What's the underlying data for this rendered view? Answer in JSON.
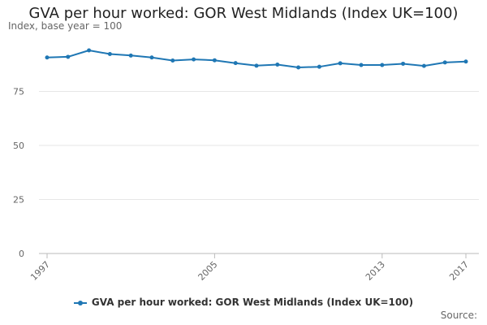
{
  "chart_data": {
    "type": "line",
    "title": "GVA per hour worked: GOR West Midlands (Index UK=100)",
    "ylabel": "Index, base year = 100",
    "xlabel": "",
    "x": [
      "1997",
      "1998",
      "1999",
      "2000",
      "2001",
      "2002",
      "2003",
      "2004",
      "2005",
      "2006",
      "2007",
      "2008",
      "2009",
      "2010",
      "2011",
      "2012",
      "2013",
      "2014",
      "2015",
      "2016",
      "2017"
    ],
    "x_tick_labels": [
      "1997",
      "2005",
      "2013",
      "2017"
    ],
    "y_ticks": [
      0,
      25,
      50,
      75
    ],
    "ylim": [
      0,
      100
    ],
    "grid": true,
    "legend_position": "bottom",
    "series": [
      {
        "name": "GVA per hour worked: GOR West Midlands (Index UK=100)",
        "color": "#1f77b4",
        "values": [
          90.7,
          91.0,
          94.0,
          92.3,
          91.6,
          90.7,
          89.3,
          89.8,
          89.4,
          88.1,
          86.9,
          87.4,
          86.1,
          86.4,
          88.0,
          87.2,
          87.2,
          87.8,
          86.8,
          88.4,
          88.8
        ]
      }
    ]
  },
  "source_label": "Source:"
}
